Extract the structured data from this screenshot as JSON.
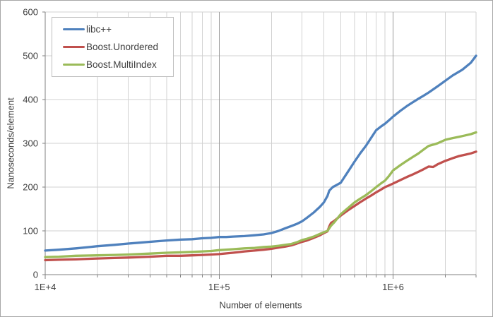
{
  "chart_data": {
    "type": "line",
    "title": "",
    "xlabel": "Number of elements",
    "ylabel": "Nanoseconds/element",
    "x_scale": "log",
    "x_range": [
      10000,
      3000000
    ],
    "y_range": [
      0,
      600
    ],
    "y_ticks": [
      0,
      100,
      200,
      300,
      400,
      500,
      600
    ],
    "x_major_ticks": [
      {
        "label": "1E+4",
        "value": 10000
      },
      {
        "label": "1E+5",
        "value": 100000
      },
      {
        "label": "1E+6",
        "value": 1000000
      }
    ],
    "grid": true,
    "legend_position": "top-left",
    "colors": {
      "axis": "#808080",
      "grid_minor": "#d2d2d2",
      "grid_major": "#999999",
      "text": "#404040"
    },
    "series": [
      {
        "name": "libc++",
        "color": "#4F81BD",
        "points": [
          [
            10000,
            55
          ],
          [
            12000,
            57
          ],
          [
            15000,
            60
          ],
          [
            18000,
            63
          ],
          [
            20000,
            65
          ],
          [
            25000,
            68
          ],
          [
            30000,
            71
          ],
          [
            35000,
            73
          ],
          [
            40000,
            75
          ],
          [
            50000,
            78
          ],
          [
            60000,
            80
          ],
          [
            70000,
            81
          ],
          [
            80000,
            83
          ],
          [
            90000,
            84
          ],
          [
            100000,
            86
          ],
          [
            110000,
            86
          ],
          [
            120000,
            87
          ],
          [
            140000,
            88
          ],
          [
            160000,
            90
          ],
          [
            180000,
            92
          ],
          [
            200000,
            95
          ],
          [
            220000,
            100
          ],
          [
            240000,
            106
          ],
          [
            260000,
            111
          ],
          [
            280000,
            116
          ],
          [
            300000,
            122
          ],
          [
            320000,
            130
          ],
          [
            350000,
            142
          ],
          [
            380000,
            155
          ],
          [
            400000,
            165
          ],
          [
            420000,
            180
          ],
          [
            430000,
            192
          ],
          [
            450000,
            200
          ],
          [
            470000,
            204
          ],
          [
            500000,
            210
          ],
          [
            550000,
            235
          ],
          [
            600000,
            258
          ],
          [
            650000,
            278
          ],
          [
            700000,
            295
          ],
          [
            750000,
            313
          ],
          [
            800000,
            330
          ],
          [
            850000,
            338
          ],
          [
            900000,
            345
          ],
          [
            950000,
            353
          ],
          [
            1000000,
            361
          ],
          [
            1100000,
            374
          ],
          [
            1200000,
            385
          ],
          [
            1300000,
            394
          ],
          [
            1400000,
            402
          ],
          [
            1500000,
            409
          ],
          [
            1600000,
            416
          ],
          [
            1800000,
            430
          ],
          [
            2000000,
            443
          ],
          [
            2200000,
            455
          ],
          [
            2500000,
            468
          ],
          [
            2800000,
            484
          ],
          [
            3000000,
            500
          ]
        ]
      },
      {
        "name": "Boost.Unordered",
        "color": "#C0504D",
        "points": [
          [
            10000,
            33
          ],
          [
            12000,
            34
          ],
          [
            15000,
            35
          ],
          [
            20000,
            37
          ],
          [
            25000,
            38
          ],
          [
            30000,
            39
          ],
          [
            40000,
            41
          ],
          [
            50000,
            43
          ],
          [
            60000,
            43
          ],
          [
            70000,
            44
          ],
          [
            80000,
            45
          ],
          [
            90000,
            46
          ],
          [
            100000,
            47
          ],
          [
            120000,
            50
          ],
          [
            140000,
            53
          ],
          [
            160000,
            55
          ],
          [
            180000,
            57
          ],
          [
            200000,
            59
          ],
          [
            220000,
            62
          ],
          [
            240000,
            64
          ],
          [
            260000,
            67
          ],
          [
            280000,
            71
          ],
          [
            300000,
            75
          ],
          [
            320000,
            78
          ],
          [
            350000,
            84
          ],
          [
            380000,
            90
          ],
          [
            400000,
            95
          ],
          [
            420000,
            99
          ],
          [
            430000,
            110
          ],
          [
            440000,
            118
          ],
          [
            460000,
            123
          ],
          [
            500000,
            135
          ],
          [
            550000,
            147
          ],
          [
            600000,
            157
          ],
          [
            650000,
            166
          ],
          [
            700000,
            174
          ],
          [
            750000,
            181
          ],
          [
            800000,
            188
          ],
          [
            850000,
            194
          ],
          [
            900000,
            200
          ],
          [
            950000,
            204
          ],
          [
            1000000,
            208
          ],
          [
            1100000,
            216
          ],
          [
            1200000,
            223
          ],
          [
            1300000,
            229
          ],
          [
            1400000,
            235
          ],
          [
            1500000,
            241
          ],
          [
            1600000,
            247
          ],
          [
            1700000,
            246
          ],
          [
            1800000,
            252
          ],
          [
            2000000,
            260
          ],
          [
            2200000,
            266
          ],
          [
            2400000,
            271
          ],
          [
            2600000,
            274
          ],
          [
            2800000,
            277
          ],
          [
            3000000,
            281
          ]
        ]
      },
      {
        "name": "Boost.MultiIndex",
        "color": "#9BBB59",
        "points": [
          [
            10000,
            40
          ],
          [
            12000,
            41
          ],
          [
            15000,
            43
          ],
          [
            20000,
            44
          ],
          [
            25000,
            45
          ],
          [
            30000,
            46
          ],
          [
            40000,
            48
          ],
          [
            50000,
            50
          ],
          [
            60000,
            51
          ],
          [
            70000,
            52
          ],
          [
            80000,
            53
          ],
          [
            90000,
            54
          ],
          [
            100000,
            56
          ],
          [
            120000,
            58
          ],
          [
            140000,
            60
          ],
          [
            160000,
            61
          ],
          [
            180000,
            63
          ],
          [
            200000,
            64
          ],
          [
            220000,
            66
          ],
          [
            240000,
            68
          ],
          [
            260000,
            70
          ],
          [
            280000,
            74
          ],
          [
            300000,
            79
          ],
          [
            320000,
            82
          ],
          [
            350000,
            87
          ],
          [
            380000,
            93
          ],
          [
            400000,
            97
          ],
          [
            420000,
            100
          ],
          [
            440000,
            112
          ],
          [
            460000,
            120
          ],
          [
            500000,
            138
          ],
          [
            550000,
            152
          ],
          [
            600000,
            165
          ],
          [
            650000,
            174
          ],
          [
            700000,
            182
          ],
          [
            750000,
            191
          ],
          [
            800000,
            200
          ],
          [
            850000,
            208
          ],
          [
            900000,
            215
          ],
          [
            950000,
            226
          ],
          [
            1000000,
            238
          ],
          [
            1100000,
            250
          ],
          [
            1200000,
            260
          ],
          [
            1300000,
            269
          ],
          [
            1400000,
            277
          ],
          [
            1500000,
            286
          ],
          [
            1600000,
            294
          ],
          [
            1700000,
            297
          ],
          [
            1800000,
            300
          ],
          [
            2000000,
            308
          ],
          [
            2200000,
            312
          ],
          [
            2400000,
            315
          ],
          [
            2600000,
            318
          ],
          [
            2800000,
            321
          ],
          [
            3000000,
            325
          ]
        ]
      }
    ]
  }
}
